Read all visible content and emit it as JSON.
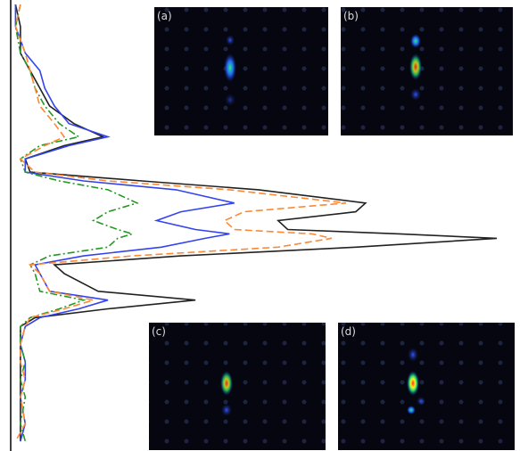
{
  "chart_data": {
    "type": "line",
    "orientation": "vertical",
    "positions": [
      0,
      5,
      11,
      15,
      19,
      23,
      27,
      30,
      32,
      35,
      38,
      40,
      42,
      45,
      47,
      49,
      51,
      52,
      53,
      55,
      57,
      59,
      61,
      65,
      67,
      69,
      71,
      73,
      77,
      81,
      85,
      89,
      95,
      99
    ],
    "xlim": [
      0,
      100
    ],
    "ylim": [
      0,
      100
    ],
    "series": [
      {
        "color": "#222222",
        "style": "solid",
        "values": [
          1,
          2,
          2,
          4,
          6,
          8,
          13,
          19,
          11,
          3,
          4,
          27,
          51,
          73,
          71,
          55,
          57,
          80,
          100,
          71,
          35,
          9,
          11,
          18,
          38,
          20,
          5,
          2,
          2,
          2,
          2,
          2,
          2,
          2
        ]
      },
      {
        "color": "#3344ee",
        "style": "solid",
        "values": [
          1,
          1,
          3,
          6,
          7,
          9,
          12,
          20,
          12,
          3,
          3,
          15,
          34,
          46,
          35,
          30,
          38,
          45,
          40,
          31,
          15,
          5,
          6,
          8,
          20,
          14,
          6,
          3,
          2,
          3,
          3,
          2,
          3,
          2
        ]
      },
      {
        "color": "#229922",
        "style": "dashdot",
        "values": [
          2,
          1,
          2,
          4,
          5,
          7,
          10,
          14,
          6,
          2,
          3,
          10,
          20,
          26,
          20,
          17,
          22,
          25,
          22,
          20,
          8,
          4,
          5,
          6,
          15,
          10,
          4,
          2,
          2,
          3,
          2,
          3,
          2,
          3
        ]
      },
      {
        "color": "#ff8833",
        "style": "dashed",
        "values": [
          2,
          1,
          3,
          4,
          5,
          6,
          9,
          11,
          7,
          2,
          5,
          20,
          45,
          69,
          48,
          44,
          46,
          62,
          66,
          55,
          25,
          4,
          6,
          8,
          17,
          11,
          4,
          3,
          2,
          2,
          3,
          2,
          3,
          1
        ]
      }
    ],
    "panels": [
      {
        "label": "(a)"
      },
      {
        "label": "(b)"
      },
      {
        "label": "(c)"
      },
      {
        "label": "(d)"
      }
    ]
  }
}
